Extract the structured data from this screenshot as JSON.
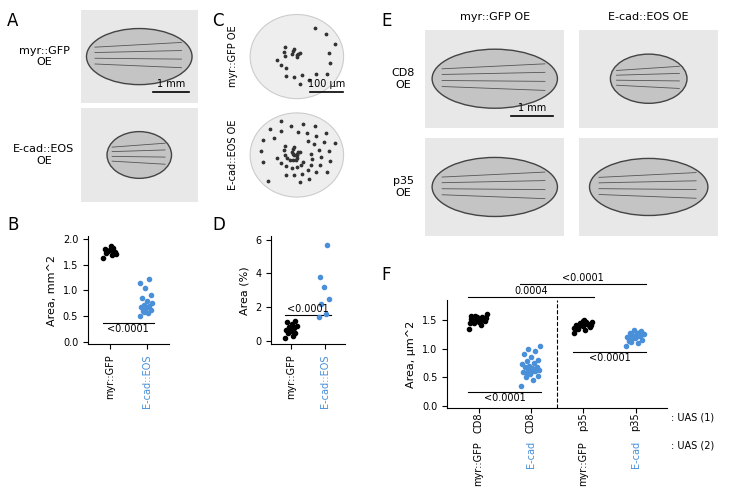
{
  "chart_data": [
    {
      "type": "strip",
      "panel": "B",
      "ylabel": "Area, mm^2",
      "categories": [
        "myr::GFP",
        "E-cad::EOS"
      ],
      "colors": [
        "#000000",
        "#4a90d9"
      ],
      "values": [
        [
          1.62,
          1.68,
          1.72,
          1.75,
          1.78,
          1.8,
          1.82,
          1.76,
          1.7,
          1.85,
          1.79,
          1.73
        ],
        [
          0.5,
          0.55,
          0.6,
          0.62,
          0.65,
          0.68,
          0.7,
          0.72,
          0.75,
          0.8,
          0.85,
          0.9,
          1.05,
          1.15,
          1.22,
          0.58
        ]
      ],
      "ylim": [
        -0.05,
        2.05
      ],
      "yticks": [
        {
          "value": 0,
          "label": "0.0"
        },
        0.5,
        {
          "value": 1,
          "label": "1.0"
        },
        1.5,
        {
          "value": 2,
          "label": "2.0"
        }
      ],
      "comparisons": [
        {
          "pair": [
            0,
            1
          ],
          "text": "<0.0001",
          "side": "below"
        }
      ]
    },
    {
      "type": "strip",
      "panel": "D",
      "ylabel": "Area (%)",
      "categories": [
        "myr::GFP",
        "E-cad::EOS"
      ],
      "colors": [
        "#000000",
        "#4a90d9"
      ],
      "values": [
        [
          0.2,
          0.3,
          0.45,
          0.5,
          0.6,
          0.65,
          0.75,
          0.8,
          0.9,
          1.0,
          1.1,
          1.2
        ],
        [
          1.4,
          1.6,
          2.2,
          2.5,
          3.2,
          3.8,
          5.7
        ]
      ],
      "ylim": [
        -0.2,
        6.2
      ],
      "yticks": [
        0,
        2,
        4,
        6
      ],
      "comparisons": [
        {
          "pair": [
            0,
            1
          ],
          "text": "<0.0001",
          "side": "above"
        }
      ]
    },
    {
      "type": "strip",
      "panel": "F",
      "ylabel": "Area, µm^2",
      "categories": [
        "myr::GFP",
        "E-cad",
        "myr::GFP",
        "E-cad"
      ],
      "groups": [
        "CD8",
        "CD8",
        "p35",
        "p35"
      ],
      "groups_label": ": UAS (1)",
      "categories_label": ": UAS (2)",
      "colors": [
        "#000000",
        "#4a90d9",
        "#000000",
        "#4a90d9"
      ],
      "values": [
        [
          1.35,
          1.42,
          1.45,
          1.48,
          1.5,
          1.52,
          1.55,
          1.58,
          1.6,
          1.47,
          1.5,
          1.53,
          1.56,
          1.44,
          1.49,
          1.51,
          1.54,
          1.46,
          1.57,
          1.52
        ],
        [
          0.35,
          0.45,
          0.5,
          0.52,
          0.55,
          0.58,
          0.6,
          0.62,
          0.63,
          0.65,
          0.67,
          0.68,
          0.7,
          0.72,
          0.75,
          0.78,
          0.8,
          0.85,
          0.9,
          0.95,
          1.0,
          1.05,
          0.6,
          0.57,
          0.66
        ],
        [
          1.28,
          1.32,
          1.35,
          1.37,
          1.4,
          1.42,
          1.43,
          1.45,
          1.47,
          1.5,
          1.38,
          1.41,
          1.44,
          1.36,
          1.46,
          1.39,
          1.42,
          1.48,
          1.34,
          1.43
        ],
        [
          1.05,
          1.1,
          1.12,
          1.15,
          1.18,
          1.2,
          1.22,
          1.24,
          1.25,
          1.27,
          1.28,
          1.3,
          1.32,
          1.2,
          1.23,
          1.17,
          1.26,
          1.21,
          1.14,
          1.29
        ]
      ],
      "ylim": [
        -0.05,
        1.85
      ],
      "yticks": [
        {
          "value": 0,
          "label": "0.0"
        },
        0.5,
        {
          "value": 1,
          "label": "1.0"
        },
        1.5
      ],
      "comparisons": [
        {
          "pair": [
            0,
            1
          ],
          "text": "<0.0001",
          "side": "below"
        },
        {
          "pair": [
            2,
            3
          ],
          "text": "<0.0001",
          "side": "below"
        },
        {
          "pair": [
            0,
            2
          ],
          "text": "0.0004",
          "side": "top"
        },
        {
          "pair": [
            1,
            3
          ],
          "text": "<0.0001",
          "side": "top"
        }
      ]
    }
  ],
  "images": [
    {
      "panel": "A",
      "row_labels": [
        "myr::GFP\nOE",
        "E-cad::EOS\nOE"
      ],
      "scale_bar": "1 mm"
    },
    {
      "panel": "C",
      "row_labels": [
        "myr::GFP OE",
        "E-cad::EOS OE"
      ],
      "scale_bar": "100 µm"
    },
    {
      "panel": "E",
      "column_labels": [
        "myr::GFP OE",
        "E-cad::EOS OE"
      ],
      "row_labels": [
        "CD8\nOE",
        "p35\nOE"
      ],
      "scale_bar": "1 mm"
    }
  ]
}
